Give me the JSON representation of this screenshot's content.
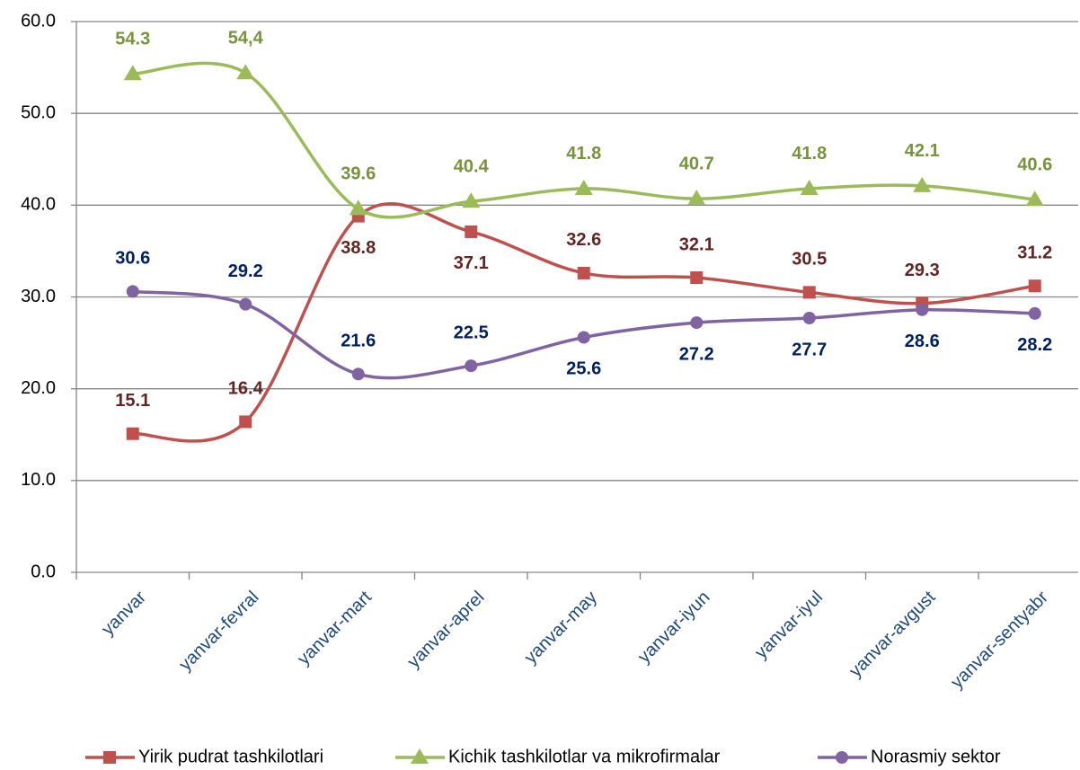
{
  "chart_data": {
    "type": "line",
    "categories": [
      "yanvar",
      "yanvar-fevral",
      "yanvar-mart",
      "yanvar-aprel",
      "yanvar-may",
      "yanvar-iyun",
      "yanvar-iyul",
      "yanvar-avgust",
      "yanvar-sentyabr"
    ],
    "series": [
      {
        "name": "Yirik pudrat tashkilotlari",
        "color": "#c0504d",
        "label_color": "#632423",
        "marker": "square",
        "values": [
          15.1,
          16.4,
          38.8,
          37.1,
          32.6,
          32.1,
          30.5,
          29.3,
          31.2
        ]
      },
      {
        "name": "Kichik tashkilotlar va mikrofirmalar",
        "color": "#9bbb59",
        "label_color": "#77933c",
        "marker": "triangle",
        "values": [
          54.3,
          54.4,
          39.6,
          40.4,
          41.8,
          40.7,
          41.8,
          42.1,
          40.6
        ],
        "value_labels": [
          "54.3",
          "54,4",
          "39.6",
          "40.4",
          "41.8",
          "40.7",
          "41.8",
          "42.1",
          "40.6"
        ]
      },
      {
        "name": "Norasmiy sektor",
        "color": "#8064a2",
        "label_color": "#002060",
        "marker": "circle",
        "values": [
          30.6,
          29.2,
          21.6,
          22.5,
          25.6,
          27.2,
          27.7,
          28.6,
          28.2
        ]
      }
    ],
    "ylim": [
      0,
      60
    ],
    "yticks": [
      {
        "value": 0,
        "label": "0.0"
      },
      {
        "value": 10,
        "label": "10.0"
      },
      {
        "value": 20,
        "label": "20.0"
      },
      {
        "value": 30,
        "label": "30.0"
      },
      {
        "value": 40,
        "label": "40.0"
      },
      {
        "value": 50,
        "label": "50.0"
      },
      {
        "value": 60,
        "label": "60.0"
      }
    ],
    "grid": true,
    "legend": "bottom",
    "smooth": true
  }
}
